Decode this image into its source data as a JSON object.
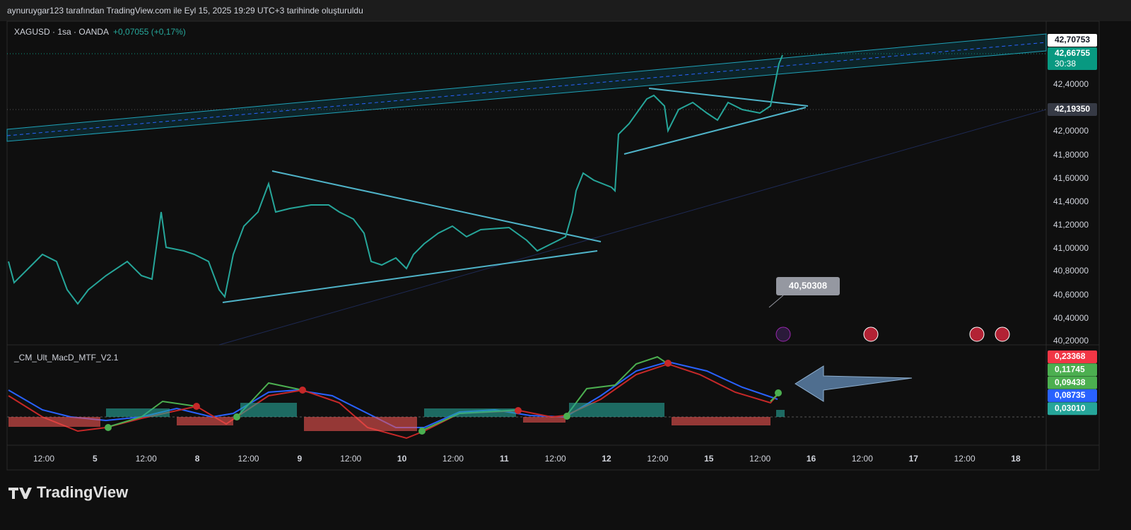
{
  "header": {
    "caption": "aynuruygar123 tarafından TradingView.com ile Eyl 15, 2025 19:29 UTC+3 tarihinde oluşturuldu"
  },
  "symbol": {
    "name": "XAGUSD · 1sa · OANDA",
    "change": "+0,07055 (+0,17%)"
  },
  "price_axis": {
    "ticks": [
      "42,40000",
      "42,00000",
      "41,80000",
      "41,60000",
      "41,40000",
      "41,20000",
      "41,00000",
      "40,80000",
      "40,60000",
      "40,40000",
      "40,20000"
    ],
    "tags": [
      {
        "label": "42,70753",
        "color": "#ffffff"
      },
      {
        "label": "42,66755",
        "color": "#089981",
        "countdown": "30:38"
      },
      {
        "label": "42,19350",
        "color": "#363a45"
      }
    ]
  },
  "annotation": {
    "label": "40,50308"
  },
  "indicator": {
    "name": "_CM_Ult_MacD_MTF_V2.1",
    "tags": [
      {
        "label": "0,23368",
        "color": "#f23645"
      },
      {
        "label": "0,11745",
        "color": "#4caf50"
      },
      {
        "label": "0,09438",
        "color": "#4caf50"
      },
      {
        "label": "0,08735",
        "color": "#2962ff"
      },
      {
        "label": "0,03010",
        "color": "#26a69a"
      }
    ]
  },
  "time_axis": {
    "labels": [
      "12:00",
      "5",
      "12:00",
      "8",
      "12:00",
      "9",
      "12:00",
      "10",
      "12:00",
      "11",
      "12:00",
      "12",
      "12:00",
      "15",
      "12:00",
      "16",
      "12:00",
      "17",
      "12:00",
      "18"
    ]
  },
  "logo": {
    "text": "TradingView"
  }
}
